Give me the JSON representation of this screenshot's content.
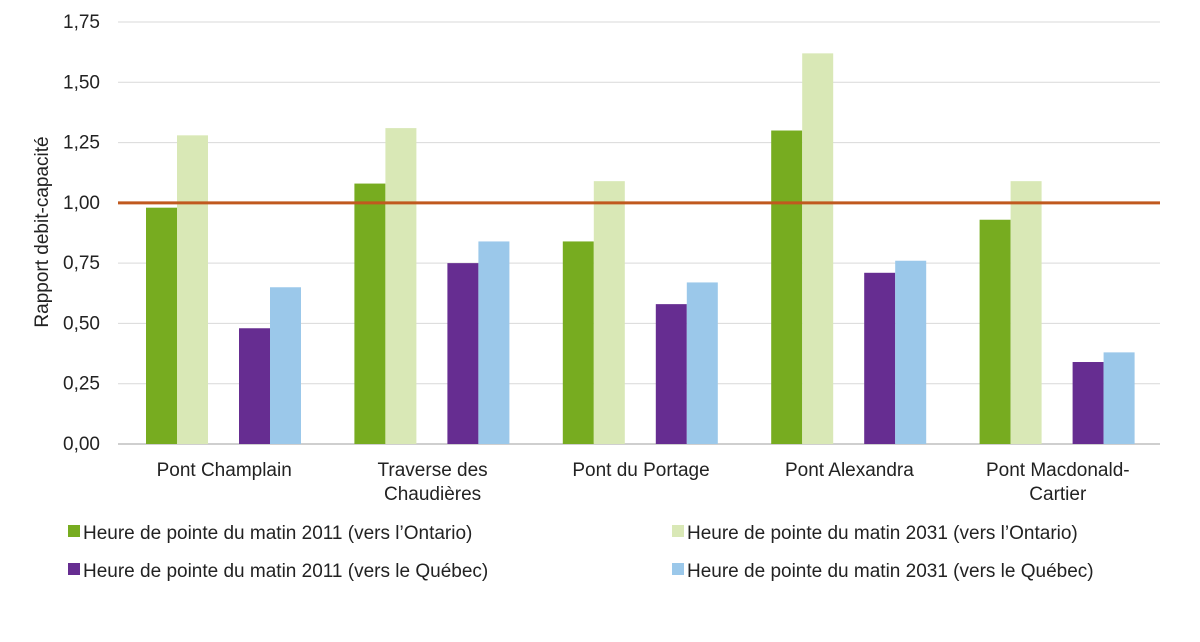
{
  "chart_data": {
    "type": "bar",
    "title": "",
    "xlabel": "",
    "ylabel": "Rapport debit-capacité",
    "ylim": [
      0,
      1.75
    ],
    "yticks": [
      "0,00",
      "0,25",
      "0,50",
      "0,75",
      "1,00",
      "1,25",
      "1,50",
      "1,75"
    ],
    "categories": [
      [
        "Pont Champlain"
      ],
      [
        "Traverse des",
        "Chaudières"
      ],
      [
        "Pont du Portage"
      ],
      [
        "Pont Alexandra"
      ],
      [
        "Pont Macdonald-",
        "Cartier"
      ]
    ],
    "series": [
      {
        "name": "Heure de pointe du matin 2011 (vers l’Ontario)",
        "color": "#77ac20",
        "values": [
          0.98,
          1.08,
          0.84,
          1.3,
          0.93
        ]
      },
      {
        "name": "Heure de pointe du matin 2031 (vers l’Ontario)",
        "color": "#d9e8b6",
        "values": [
          1.28,
          1.31,
          1.09,
          1.62,
          1.09
        ]
      },
      {
        "name": "Heure de pointe du matin 2011 (vers le Québec)",
        "color": "#662d91",
        "values": [
          0.48,
          0.75,
          0.58,
          0.71,
          0.34
        ]
      },
      {
        "name": "Heure de pointe du matin 2031 (vers le Québec)",
        "color": "#9bc8ea",
        "values": [
          0.65,
          0.84,
          0.67,
          0.76,
          0.38
        ]
      }
    ],
    "reference_line": {
      "value": 1.0,
      "color": "#c0591e"
    },
    "grid": true,
    "gridline_color": "#d9d9d9",
    "legend_position": "bottom"
  }
}
